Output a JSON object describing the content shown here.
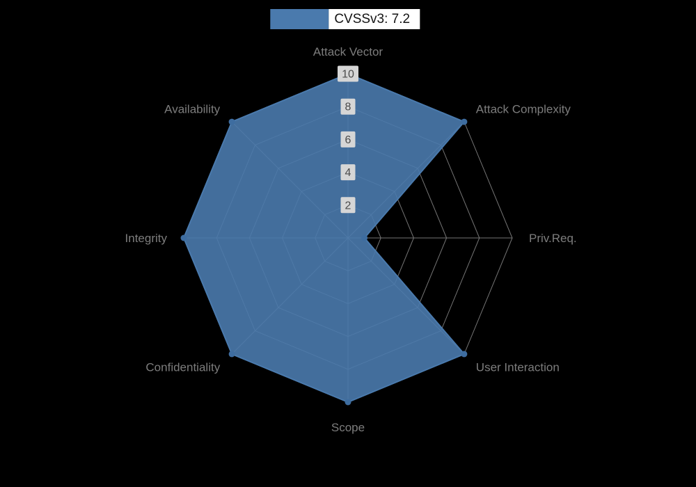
{
  "background_color": "#000000",
  "legend": {
    "label": "CVSSv3: 7.2",
    "swatch_color": "#4a7aad",
    "text_color": "#141414",
    "text_background": "#ffffff"
  },
  "chart_data": {
    "type": "radar",
    "title": "CVSSv3: 7.2",
    "axes": [
      "Attack Vector",
      "Attack Complexity",
      "Priv.Req.",
      "User Interaction",
      "Scope",
      "Confidentiality",
      "Integrity",
      "Availability"
    ],
    "series": [
      {
        "name": "CVSSv3: 7.2",
        "values": [
          10,
          10,
          1,
          10,
          10,
          10,
          10,
          10
        ],
        "color": "#4a7aad",
        "fill_opacity": 0.9
      }
    ],
    "max": 10,
    "radial_ticks": [
      2,
      4,
      6,
      8,
      10
    ],
    "grid": true,
    "legend_position": "top",
    "style": {
      "grid_color": "#757575",
      "axis_label_color": "#7d7d7d",
      "axis_label_size": 17,
      "tick_label_color": "#4b4b4b",
      "tick_label_background": "#d6d6d6",
      "vertex_dot_color": "#3e6da0"
    }
  }
}
